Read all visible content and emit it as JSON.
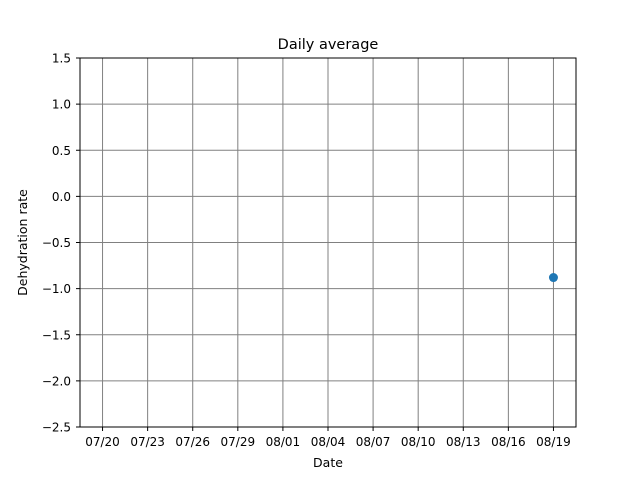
{
  "chart_data": {
    "type": "scatter",
    "title": "Daily average",
    "xlabel": "Date",
    "ylabel": "Dehydration rate",
    "x_ticks": [
      "07/20",
      "07/23",
      "07/26",
      "07/29",
      "08/01",
      "08/04",
      "08/07",
      "08/10",
      "08/13",
      "08/16",
      "08/19"
    ],
    "y_ticks": [
      "1.5",
      "1.0",
      "0.5",
      "0.0",
      "−0.5",
      "−1.0",
      "−1.5",
      "−2.0",
      "−2.5"
    ],
    "xlim": [
      "07/18.5",
      "08/20.5"
    ],
    "ylim": [
      -2.5,
      1.5
    ],
    "grid": true,
    "series": [
      {
        "points": [
          {
            "x": "08/19",
            "y": -0.88
          }
        ]
      }
    ]
  },
  "colors": {
    "point": "#1f77b4",
    "grid": "#808080",
    "axes": "#000000",
    "background": "#ffffff"
  }
}
